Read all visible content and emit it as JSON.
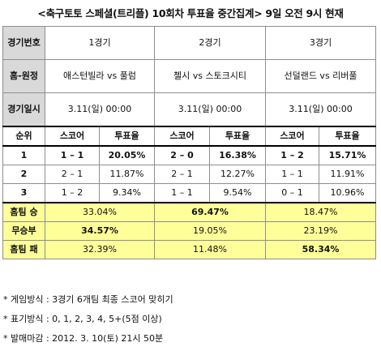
{
  "title": "<축구토토 스페셜(트리플) 10회차 투표율 중간집계> 9일 오전 9시 현재",
  "header": {
    "game_no_label": "경기번호",
    "games": [
      "1경기",
      "2경기",
      "3경기"
    ],
    "matchup_label": "홈-원정",
    "matchups": [
      "애스턴빌라 vs 풀럼",
      "첼시 vs 스토크시티",
      "선덜랜드 vs 리버풀"
    ],
    "date_label": "경기일시",
    "dates": [
      "3.11(일) 00:00",
      "3.11(일) 00:00",
      "3.11(일) 00:00"
    ]
  },
  "rank_header": {
    "rank_label": "순위",
    "score_label": "스코어",
    "vote_label": "투표율"
  },
  "rank_rows": [
    {
      "rank": "1",
      "cells": [
        [
          "1 – 1",
          "20.05%"
        ],
        [
          "2 – 0",
          "16.38%"
        ],
        [
          "1 – 2",
          "15.71%"
        ]
      ]
    },
    {
      "rank": "2",
      "cells": [
        [
          "2 – 1",
          "11.87%"
        ],
        [
          "2 – 1",
          "12.27%"
        ],
        [
          "1 – 1",
          "11.91%"
        ]
      ]
    },
    {
      "rank": "3",
      "cells": [
        [
          "1 – 2",
          "9.34%"
        ],
        [
          "1 – 1",
          "9.54%"
        ],
        [
          "0 – 1",
          "10.96%"
        ]
      ]
    }
  ],
  "outcome_rows": [
    {
      "label": "홈팀 승",
      "values": [
        "33.04%",
        "69.47%",
        "18.47%"
      ]
    },
    {
      "label": "무승부",
      "values": [
        "34.57%",
        "19.05%",
        "23.19%"
      ]
    },
    {
      "label": "홈팀 패",
      "values": [
        "32.39%",
        "11.48%",
        "58.34%"
      ]
    }
  ],
  "notes": [
    "* 게임방식 : 3경기 6개팀 최종 스코어 맞히기",
    "* 표기방식 : 0, 1, 2, 3, 4, 5+(5점 이상)",
    "* 발매마감 : 2012. 3. 10(토) 21시 50분"
  ],
  "colors": {
    "header_bg": "#d9d9d9",
    "highlight_bg": "#ffff99",
    "border": "#8e8e8e"
  }
}
